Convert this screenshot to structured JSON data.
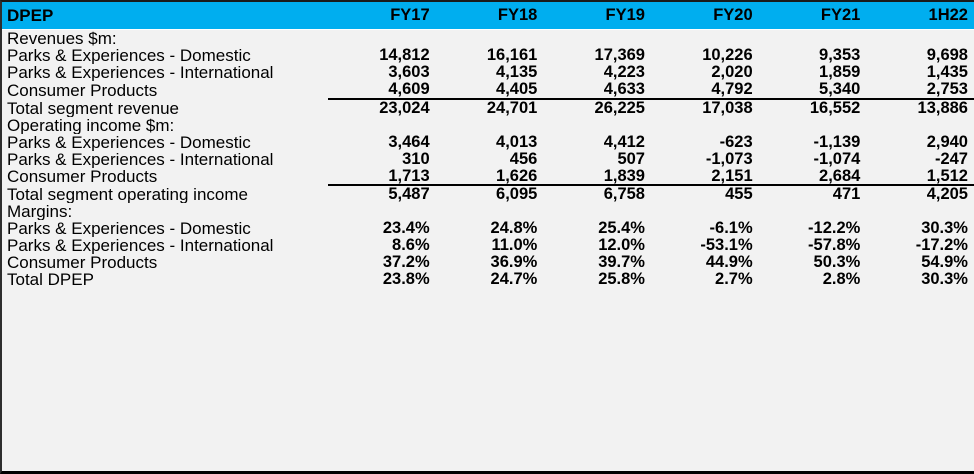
{
  "colors": {
    "accent_blue": "#00AEEF",
    "background": "#F2F2F2",
    "text": "#000000",
    "rule_line": "#000000"
  },
  "header": {
    "title": "DPEP",
    "columns": [
      "FY17",
      "FY18",
      "FY19",
      "FY20",
      "FY21",
      "1H22"
    ]
  },
  "sections": [
    {
      "heading": "Revenues $m:",
      "rows": [
        {
          "label": "Parks & Experiences - Domestic",
          "values": [
            "14,812",
            "16,161",
            "17,369",
            "10,226",
            "9,353",
            "9,698"
          ],
          "underline": false
        },
        {
          "label": "Parks & Experiences - International",
          "values": [
            "3,603",
            "4,135",
            "4,223",
            "2,020",
            "1,859",
            "1,435"
          ],
          "underline": false
        },
        {
          "label": "Consumer Products",
          "values": [
            "4,609",
            "4,405",
            "4,633",
            "4,792",
            "5,340",
            "2,753"
          ],
          "underline": true
        }
      ],
      "total": {
        "label": "Total segment revenue",
        "values": [
          "23,024",
          "24,701",
          "26,225",
          "17,038",
          "16,552",
          "13,886"
        ]
      }
    },
    {
      "heading": "Operating income $m:",
      "rows": [
        {
          "label": "Parks & Experiences - Domestic",
          "values": [
            "3,464",
            "4,013",
            "4,412",
            "-623",
            "-1,139",
            "2,940"
          ],
          "underline": false
        },
        {
          "label": "Parks & Experiences - International",
          "values": [
            "310",
            "456",
            "507",
            "-1,073",
            "-1,074",
            "-247"
          ],
          "underline": false
        },
        {
          "label": "Consumer Products",
          "values": [
            "1,713",
            "1,626",
            "1,839",
            "2,151",
            "2,684",
            "1,512"
          ],
          "underline": true
        }
      ],
      "total": {
        "label": "Total segment operating income",
        "values": [
          "5,487",
          "6,095",
          "6,758",
          "455",
          "471",
          "4,205"
        ]
      }
    },
    {
      "heading": "Margins:",
      "rows": [
        {
          "label": "Parks & Experiences - Domestic",
          "values": [
            "23.4%",
            "24.8%",
            "25.4%",
            "-6.1%",
            "-12.2%",
            "30.3%"
          ],
          "underline": false
        },
        {
          "label": "Parks & Experiences - International",
          "values": [
            "8.6%",
            "11.0%",
            "12.0%",
            "-53.1%",
            "-57.8%",
            "-17.2%"
          ],
          "underline": false
        },
        {
          "label": "Consumer Products",
          "values": [
            "37.2%",
            "36.9%",
            "39.7%",
            "44.9%",
            "50.3%",
            "54.9%"
          ],
          "underline": false
        }
      ],
      "total": {
        "label": "Total DPEP",
        "values": [
          "23.8%",
          "24.7%",
          "25.8%",
          "2.7%",
          "2.8%",
          "30.3%"
        ]
      }
    }
  ]
}
